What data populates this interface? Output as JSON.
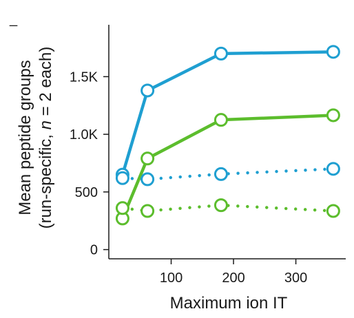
{
  "chart_data": {
    "type": "line",
    "corner_label": "_",
    "xlabel": "Maximum ion IT",
    "ylabel_line1": "Mean peptide groups",
    "ylabel_line2_prefix": "(run-specific, ",
    "ylabel_line2_italic": "n",
    "ylabel_line2_suffix": " = 2 each)",
    "xlim": [
      0,
      380
    ],
    "ylim": [
      -80,
      1950
    ],
    "x_ticks": [
      100,
      200,
      300
    ],
    "x_tick_labels": [
      "100",
      "200",
      "300"
    ],
    "y_ticks": [
      0,
      500,
      1000,
      1500
    ],
    "y_tick_labels": [
      "0",
      "500",
      "1.0K",
      "1.5K"
    ],
    "colors": {
      "blue": "#1f9fd1",
      "green": "#5cbd2d",
      "axis": "#1a1a1a"
    },
    "series": [
      {
        "color": "#1f9fd1",
        "style": "solid",
        "x": [
          22,
          62,
          180,
          360
        ],
        "y": [
          650,
          1380,
          1700,
          1715
        ]
      },
      {
        "color": "#5cbd2d",
        "style": "solid",
        "x": [
          22,
          62,
          180,
          360
        ],
        "y": [
          270,
          790,
          1125,
          1165
        ]
      },
      {
        "color": "#1f9fd1",
        "style": "dotted",
        "x": [
          22,
          62,
          180,
          360
        ],
        "y": [
          620,
          610,
          655,
          700
        ]
      },
      {
        "color": "#5cbd2d",
        "style": "dotted",
        "x": [
          22,
          62,
          180,
          360
        ],
        "y": [
          360,
          335,
          385,
          335
        ]
      }
    ]
  }
}
